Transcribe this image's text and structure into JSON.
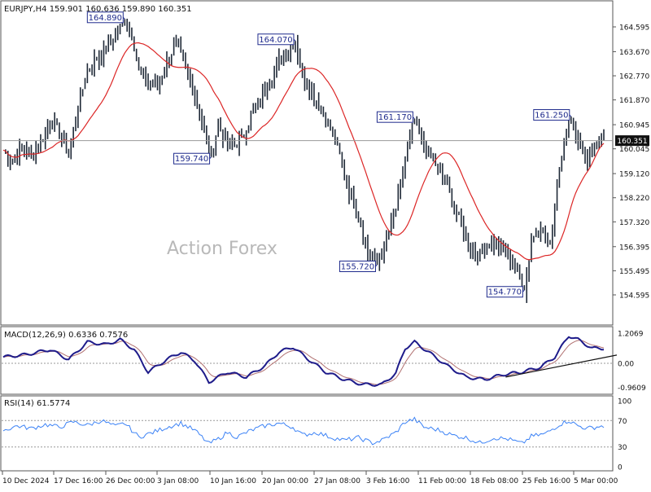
{
  "header": {
    "symbol_info": "EURJPY,H4 159.901 160.636 159.890 160.351",
    "watermark": "Action Forex"
  },
  "colors": {
    "candle": "#1f2937",
    "ma": "#dc2626",
    "macd": "#1e1b8a",
    "signal": "#b07070",
    "rsi": "#3b82f6",
    "frame": "#555555",
    "callout": "#1e2a8c"
  },
  "chart_data": [
    {
      "type": "candlestick",
      "name": "price",
      "y_ticks": [
        "164.595",
        "163.670",
        "162.770",
        "161.870",
        "160.945",
        "160.045",
        "159.120",
        "158.220",
        "157.320",
        "156.395",
        "155.495",
        "154.595"
      ],
      "current_price": "160.351",
      "ma_indicator": "moving average (red)",
      "annotations": [
        {
          "label": "164.890",
          "value": 164.89
        },
        {
          "label": "159.740",
          "value": 159.74
        },
        {
          "label": "164.070",
          "value": 164.07
        },
        {
          "label": "161.170",
          "value": 161.17
        },
        {
          "label": "155.720",
          "value": 155.72
        },
        {
          "label": "161.250",
          "value": 161.25
        },
        {
          "label": "154.770",
          "value": 154.77
        }
      ],
      "x_ticks": [
        "10 Dec 2024",
        "17 Dec 16:00",
        "26 Dec 00:00",
        "3 Jan 08:00",
        "10 Jan 16:00",
        "20 Jan 00:00",
        "27 Jan 08:00",
        "3 Feb 16:00",
        "11 Feb 00:00",
        "18 Feb 08:00",
        "25 Feb 16:00",
        "5 Mar 00:00"
      ],
      "close_path": [
        [
          0,
          160.0
        ],
        [
          4,
          159.6
        ],
        [
          8,
          160.1
        ],
        [
          12,
          159.8
        ],
        [
          16,
          160.3
        ],
        [
          20,
          161.1
        ],
        [
          24,
          160.7
        ],
        [
          28,
          159.8
        ],
        [
          32,
          161.6
        ],
        [
          36,
          163.0
        ],
        [
          40,
          163.4
        ],
        [
          44,
          163.8
        ],
        [
          48,
          164.3
        ],
        [
          52,
          164.89
        ],
        [
          55,
          164.4
        ],
        [
          58,
          163.0
        ],
        [
          62,
          162.5
        ],
        [
          66,
          162.4
        ],
        [
          70,
          163.3
        ],
        [
          74,
          164.0
        ],
        [
          78,
          163.1
        ],
        [
          82,
          162.0
        ],
        [
          86,
          160.7
        ],
        [
          89,
          159.74
        ],
        [
          92,
          161.0
        ],
        [
          95,
          160.4
        ],
        [
          98,
          160.1
        ],
        [
          102,
          160.4
        ],
        [
          106,
          161.3
        ],
        [
          110,
          161.9
        ],
        [
          114,
          162.6
        ],
        [
          118,
          163.3
        ],
        [
          122,
          163.7
        ],
        [
          125,
          164.07
        ],
        [
          128,
          162.8
        ],
        [
          132,
          162.2
        ],
        [
          136,
          161.5
        ],
        [
          140,
          160.8
        ],
        [
          144,
          159.8
        ],
        [
          148,
          158.5
        ],
        [
          152,
          157.6
        ],
        [
          156,
          156.2
        ],
        [
          160,
          155.72
        ],
        [
          164,
          156.6
        ],
        [
          168,
          157.8
        ],
        [
          172,
          159.6
        ],
        [
          176,
          161.17
        ],
        [
          180,
          160.1
        ],
        [
          184,
          159.6
        ],
        [
          188,
          159.0
        ],
        [
          192,
          158.1
        ],
        [
          196,
          157.2
        ],
        [
          200,
          156.4
        ],
        [
          204,
          156.1
        ],
        [
          208,
          156.6
        ],
        [
          212,
          156.3
        ],
        [
          216,
          156.1
        ],
        [
          220,
          155.4
        ],
        [
          223,
          154.77
        ],
        [
          226,
          156.6
        ],
        [
          230,
          157.2
        ],
        [
          234,
          156.3
        ],
        [
          237,
          158.8
        ],
        [
          240,
          160.4
        ],
        [
          243,
          161.25
        ],
        [
          246,
          160.4
        ],
        [
          250,
          159.6
        ],
        [
          254,
          160.2
        ],
        [
          257,
          160.351
        ]
      ]
    },
    {
      "type": "line",
      "name": "MACD",
      "label": "MACD(12,26,9) 0.6336 0.7576",
      "y_ticks": [
        "1.2069",
        "0.00",
        "-0.9609"
      ],
      "values": [
        [
          0,
          0.25
        ],
        [
          10,
          0.35
        ],
        [
          20,
          0.55
        ],
        [
          28,
          0.15
        ],
        [
          36,
          0.85
        ],
        [
          44,
          0.75
        ],
        [
          50,
          0.95
        ],
        [
          56,
          0.55
        ],
        [
          62,
          -0.35
        ],
        [
          70,
          0.15
        ],
        [
          76,
          0.45
        ],
        [
          82,
          0.1
        ],
        [
          88,
          -0.75
        ],
        [
          96,
          -0.35
        ],
        [
          104,
          -0.55
        ],
        [
          112,
          -0.1
        ],
        [
          118,
          0.45
        ],
        [
          124,
          0.65
        ],
        [
          130,
          0.2
        ],
        [
          138,
          -0.35
        ],
        [
          146,
          -0.65
        ],
        [
          154,
          -0.85
        ],
        [
          162,
          -0.85
        ],
        [
          168,
          -0.4
        ],
        [
          172,
          0.6
        ],
        [
          176,
          0.85
        ],
        [
          182,
          0.45
        ],
        [
          190,
          -0.1
        ],
        [
          198,
          -0.55
        ],
        [
          206,
          -0.65
        ],
        [
          214,
          -0.45
        ],
        [
          222,
          -0.35
        ],
        [
          230,
          -0.15
        ],
        [
          236,
          0.25
        ],
        [
          242,
          1.1
        ],
        [
          246,
          0.95
        ],
        [
          252,
          0.6
        ]
      ]
    },
    {
      "type": "line",
      "name": "RSI",
      "label": "RSI(14) 61.5774",
      "y_ticks": [
        "100",
        "70",
        "30",
        "0"
      ],
      "levels": [
        70,
        30
      ],
      "values": [
        [
          0,
          55
        ],
        [
          6,
          62
        ],
        [
          12,
          58
        ],
        [
          18,
          64
        ],
        [
          24,
          60
        ],
        [
          30,
          68
        ],
        [
          36,
          63
        ],
        [
          42,
          70
        ],
        [
          48,
          61
        ],
        [
          52,
          66
        ],
        [
          58,
          45
        ],
        [
          64,
          52
        ],
        [
          70,
          60
        ],
        [
          76,
          66
        ],
        [
          82,
          55
        ],
        [
          88,
          35
        ],
        [
          92,
          42
        ],
        [
          96,
          52
        ],
        [
          100,
          45
        ],
        [
          106,
          55
        ],
        [
          112,
          62
        ],
        [
          118,
          66
        ],
        [
          124,
          60
        ],
        [
          128,
          48
        ],
        [
          134,
          52
        ],
        [
          140,
          45
        ],
        [
          146,
          40
        ],
        [
          152,
          44
        ],
        [
          158,
          36
        ],
        [
          162,
          40
        ],
        [
          168,
          52
        ],
        [
          172,
          68
        ],
        [
          176,
          72
        ],
        [
          180,
          60
        ],
        [
          186,
          56
        ],
        [
          192,
          48
        ],
        [
          198,
          44
        ],
        [
          204,
          36
        ],
        [
          210,
          44
        ],
        [
          216,
          42
        ],
        [
          222,
          35
        ],
        [
          226,
          46
        ],
        [
          232,
          50
        ],
        [
          238,
          64
        ],
        [
          242,
          70
        ],
        [
          246,
          62
        ],
        [
          250,
          58
        ],
        [
          256,
          61.6
        ]
      ]
    }
  ]
}
